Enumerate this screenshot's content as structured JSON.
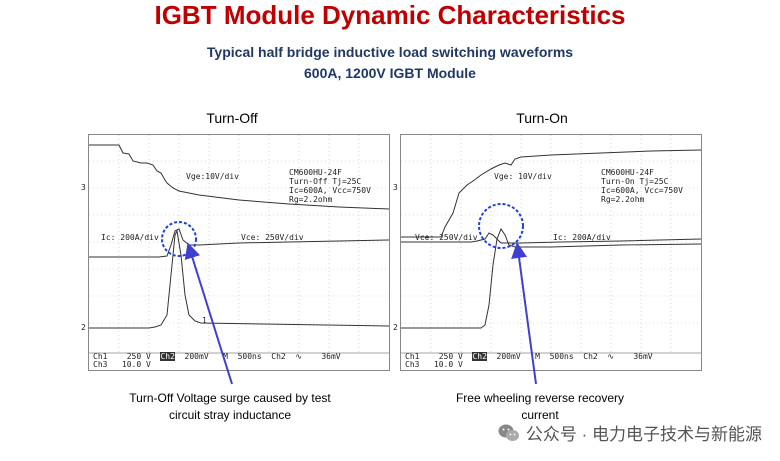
{
  "title": "IGBT Module Dynamic Characteristics",
  "subtitle_line1": "Typical half bridge inductive load switching waveforms",
  "subtitle_line2": "600A, 1200V IGBT Module",
  "turn_off": {
    "label": "Turn-Off",
    "scope_info": [
      "CM600HU-24F",
      "Turn-Off Tj=25C",
      "Ic=600A, Vcc=750V",
      "Rg=2.2ohm"
    ],
    "vge_label": "Vge:10V/div",
    "ic_label": "Ic: 200A/div",
    "vce_label": "Vce: 250V/div",
    "bottom_row1": [
      "Ch1",
      "250 V",
      "Ch2",
      "200mV",
      "M",
      "500ns",
      "Ch2",
      "∿",
      "36mV"
    ],
    "bottom_row2": [
      "Ch3",
      "10.0 V"
    ],
    "marker_3": "3",
    "marker_2": "2",
    "marker_1": "1",
    "annotation": "Turn-Off Voltage surge caused by test circuit stray inductance"
  },
  "turn_on": {
    "label": "Turn-On",
    "scope_info": [
      "CM600HU-24F",
      "Turn-On Tj=25C",
      "Ic=600A, Vcc=750V",
      "Rg=2.2ohm"
    ],
    "vge_label": "Vge: 10V/div",
    "vce_label": "Vce: 250V/div",
    "ic_label": "Ic: 200A/div",
    "bottom_row1": [
      "Ch1",
      "250 V",
      "Ch2",
      "200mV",
      "M",
      "500ns",
      "Ch2",
      "∿",
      "36mV"
    ],
    "bottom_row2": [
      "Ch3",
      "10.0 V"
    ],
    "marker_3": "3",
    "marker_2": "2",
    "annotation": "Free wheeling reverse recovery current"
  },
  "watermark": "公众号 · 电力电子技术与新能源",
  "colors": {
    "title": "#c00000",
    "subtitle": "#1f3864",
    "annotation": "#4040d0",
    "circle": "#2040e0"
  }
}
